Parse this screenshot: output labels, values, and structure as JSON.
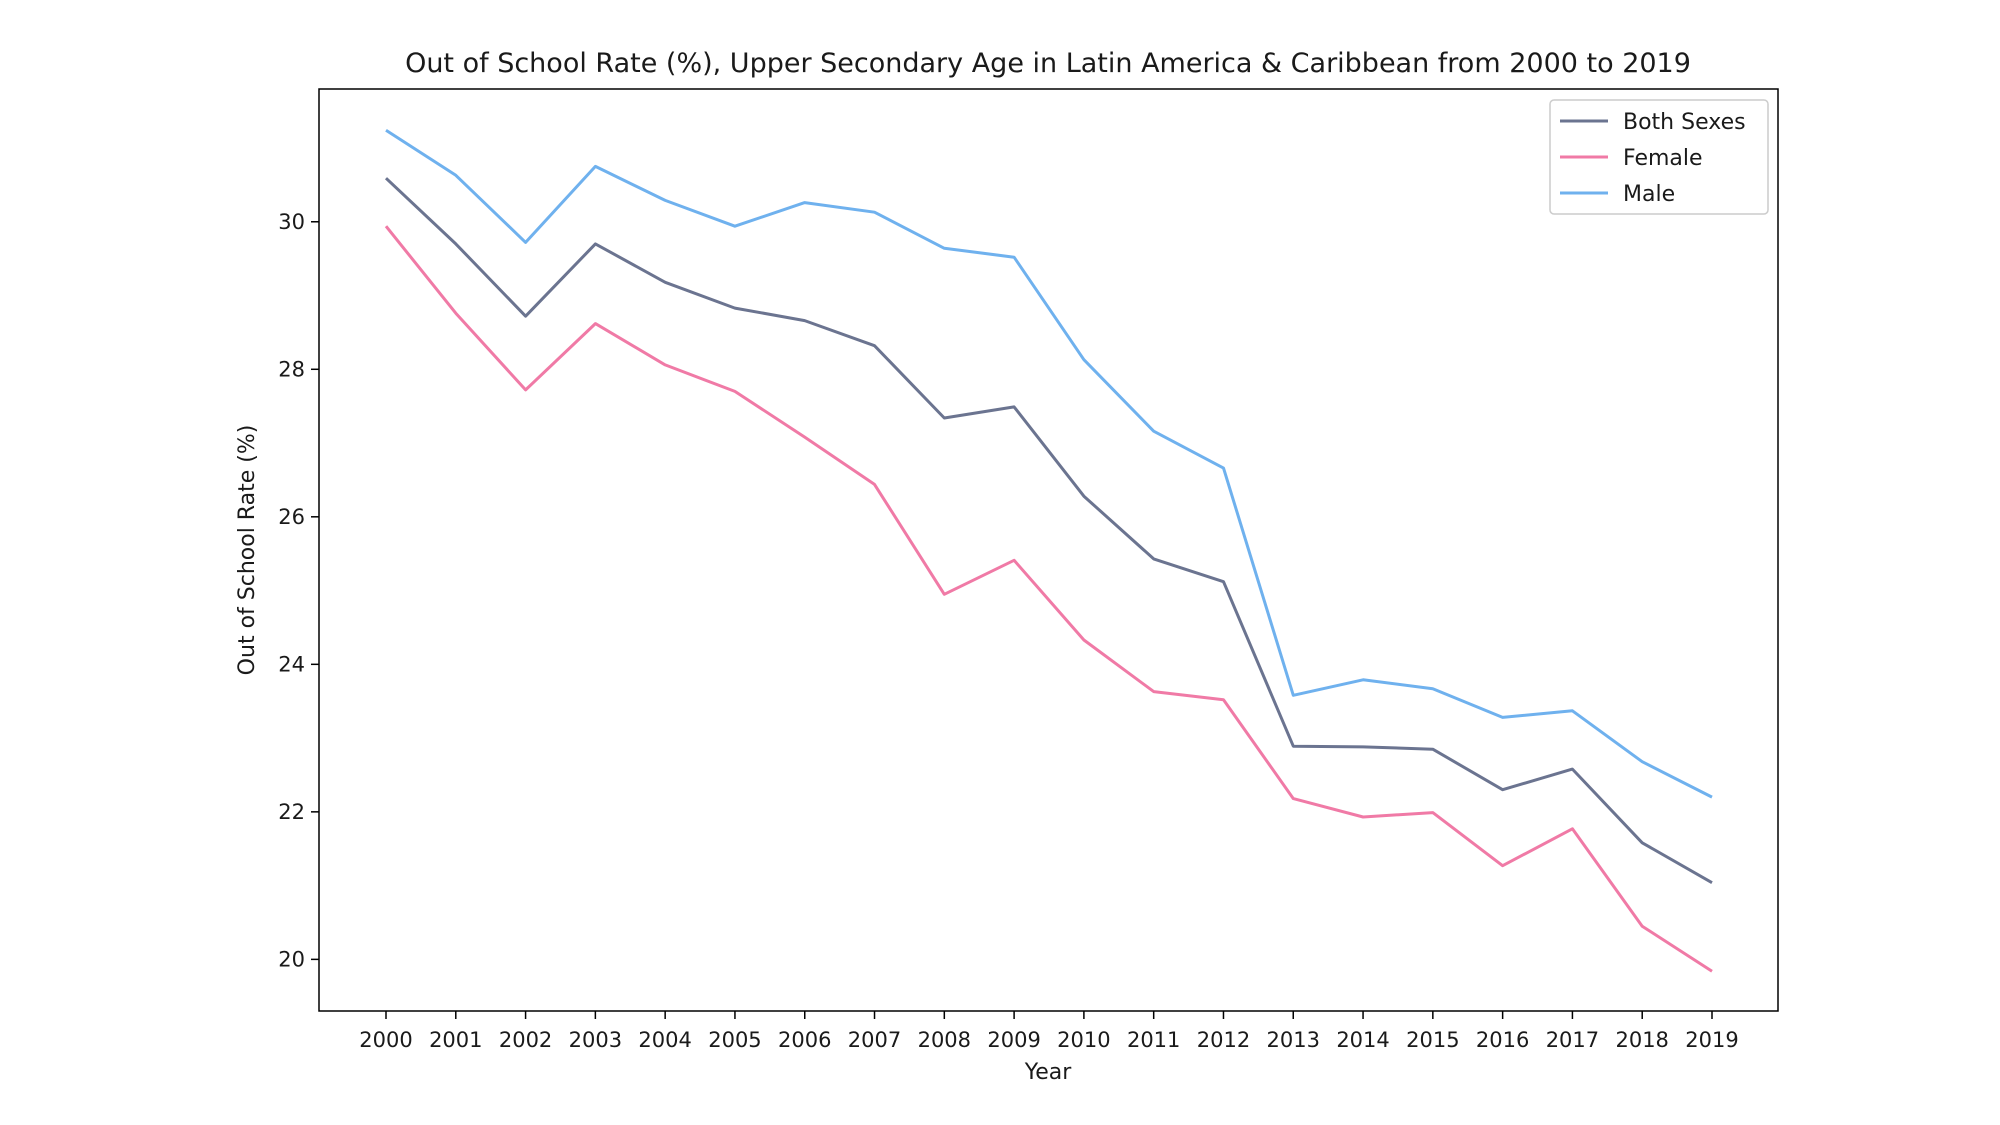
{
  "chart_data": {
    "type": "line",
    "title": "Out of School Rate (%), Upper Secondary Age in Latin America & Caribbean from 2000 to 2019",
    "xlabel": "Year",
    "ylabel": "Out of School Rate (%)",
    "categories": [
      "2000",
      "2001",
      "2002",
      "2003",
      "2004",
      "2005",
      "2006",
      "2007",
      "2008",
      "2009",
      "2010",
      "2011",
      "2012",
      "2013",
      "2014",
      "2015",
      "2016",
      "2017",
      "2018",
      "2019"
    ],
    "ylim": [
      19.3,
      31.8
    ],
    "yticks": [
      20,
      22,
      24,
      26,
      28,
      30
    ],
    "grid": false,
    "legend_position": "top-right",
    "series": [
      {
        "name": "Both Sexes",
        "color": "#6b7490",
        "values": [
          30.59,
          29.7,
          28.72,
          29.7,
          29.18,
          28.83,
          28.66,
          28.32,
          27.34,
          27.49,
          26.28,
          25.43,
          25.12,
          22.89,
          22.88,
          22.85,
          22.3,
          22.58,
          21.58,
          21.04
        ]
      },
      {
        "name": "Female",
        "color": "#f07aa6",
        "values": [
          29.94,
          28.76,
          27.72,
          28.62,
          28.06,
          27.7,
          27.08,
          26.44,
          24.95,
          25.41,
          24.33,
          23.63,
          23.52,
          22.18,
          21.93,
          21.99,
          21.27,
          21.77,
          20.45,
          19.84
        ]
      },
      {
        "name": "Male",
        "color": "#6fb1ee",
        "values": [
          31.24,
          30.63,
          29.72,
          30.75,
          30.29,
          29.94,
          30.26,
          30.13,
          29.64,
          29.52,
          28.13,
          27.16,
          26.66,
          23.58,
          23.79,
          23.67,
          23.28,
          23.37,
          22.68,
          22.2
        ]
      }
    ]
  }
}
